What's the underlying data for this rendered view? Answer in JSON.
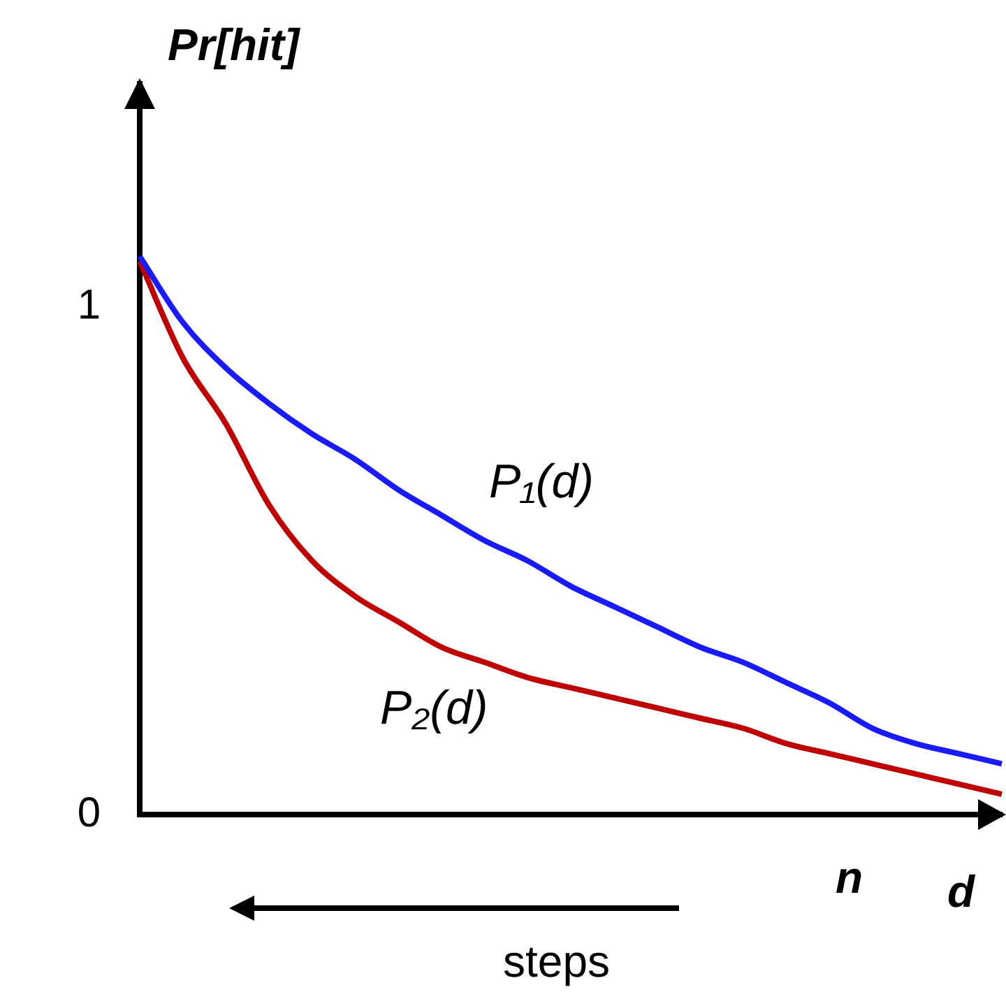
{
  "chart_data": {
    "type": "line",
    "ylabel": "Pr[hit]",
    "xlabel": "d",
    "categories": [
      null,
      null,
      null,
      null,
      null,
      null,
      null,
      null,
      null,
      null,
      null,
      null,
      null,
      null,
      null,
      null,
      null,
      null,
      null,
      null,
      null
    ],
    "series": [
      {
        "name": "P₁(d)",
        "color": "#1a1aff",
        "values": [
          1.1,
          0.97,
          0.88,
          0.81,
          0.75,
          0.7,
          0.64,
          0.59,
          0.54,
          0.5,
          0.45,
          0.41,
          0.37,
          0.33,
          0.3,
          0.26,
          0.22,
          0.17,
          0.14,
          0.12,
          0.1
        ]
      },
      {
        "name": "P₂(d)",
        "color": "#c00000",
        "values": [
          1.09,
          0.9,
          0.77,
          0.61,
          0.5,
          0.43,
          0.38,
          0.33,
          0.3,
          0.27,
          0.25,
          0.23,
          0.21,
          0.19,
          0.17,
          0.14,
          0.12,
          0.1,
          0.08,
          0.06,
          0.04
        ]
      }
    ],
    "ylim": [
      0,
      1.44
    ],
    "yticks": [
      0,
      1
    ],
    "grid": false,
    "legend": false,
    "marker": "none",
    "line_style": "solid",
    "annotations": [
      "n",
      "steps"
    ]
  }
}
